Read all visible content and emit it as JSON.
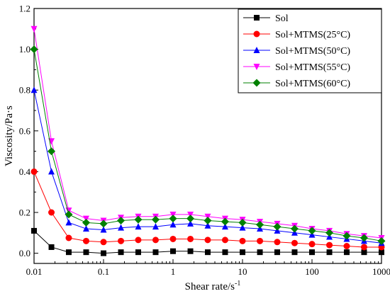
{
  "chart_data": {
    "type": "line",
    "xscale": "log",
    "xlabel": "Shear rate/s",
    "xlabel_sup": "-1",
    "ylabel": "Viscosity/Pa·s",
    "xlim": [
      0.01,
      1000
    ],
    "ylim": [
      -0.05,
      1.2
    ],
    "x_ticks": [
      0.01,
      0.1,
      1,
      10,
      100,
      1000
    ],
    "x_tick_labels": [
      "0.01",
      "0.1",
      "1",
      "10",
      "100",
      "1000"
    ],
    "y_ticks": [
      0.0,
      0.2,
      0.4,
      0.6,
      0.8,
      1.0,
      1.2
    ],
    "y_tick_labels": [
      "0.0",
      "0.2",
      "0.4",
      "0.6",
      "0.8",
      "1.0",
      "1.2"
    ],
    "grid": false,
    "legend_position": "top-right",
    "x": [
      0.01,
      0.0178,
      0.0316,
      0.0562,
      0.1,
      0.178,
      0.316,
      0.562,
      1,
      1.78,
      3.16,
      5.62,
      10,
      17.8,
      31.6,
      56.2,
      100,
      178,
      316,
      562,
      1000
    ],
    "series": [
      {
        "name": "Sol",
        "color": "#000000",
        "marker": "square",
        "values": [
          0.11,
          0.03,
          0.005,
          0.005,
          0.0,
          0.005,
          0.005,
          0.005,
          0.01,
          0.01,
          0.005,
          0.005,
          0.005,
          0.005,
          0.005,
          0.005,
          0.005,
          0.005,
          0.005,
          0.005,
          0.005
        ]
      },
      {
        "name": "Sol+MTMS(25°C)",
        "color": "#ff0000",
        "marker": "circle",
        "values": [
          0.4,
          0.2,
          0.075,
          0.06,
          0.055,
          0.06,
          0.065,
          0.065,
          0.07,
          0.07,
          0.065,
          0.065,
          0.06,
          0.06,
          0.055,
          0.05,
          0.045,
          0.04,
          0.035,
          0.03,
          0.03
        ]
      },
      {
        "name": "Sol+MTMS(50°C)",
        "color": "#0000ff",
        "marker": "triangle-up",
        "values": [
          0.8,
          0.4,
          0.15,
          0.12,
          0.115,
          0.125,
          0.13,
          0.13,
          0.14,
          0.145,
          0.135,
          0.13,
          0.125,
          0.12,
          0.11,
          0.1,
          0.09,
          0.08,
          0.07,
          0.06,
          0.05
        ]
      },
      {
        "name": "Sol+MTMS(55°C)",
        "color": "#ff00ff",
        "marker": "triangle-down",
        "values": [
          1.1,
          0.55,
          0.21,
          0.17,
          0.16,
          0.175,
          0.18,
          0.18,
          0.19,
          0.19,
          0.18,
          0.17,
          0.165,
          0.155,
          0.145,
          0.135,
          0.12,
          0.11,
          0.095,
          0.085,
          0.075
        ]
      },
      {
        "name": "Sol+MTMS(60°C)",
        "color": "#008000",
        "marker": "diamond",
        "values": [
          1.0,
          0.5,
          0.19,
          0.15,
          0.145,
          0.16,
          0.165,
          0.165,
          0.17,
          0.17,
          0.16,
          0.155,
          0.15,
          0.14,
          0.13,
          0.12,
          0.11,
          0.1,
          0.085,
          0.075,
          0.06
        ]
      }
    ]
  }
}
